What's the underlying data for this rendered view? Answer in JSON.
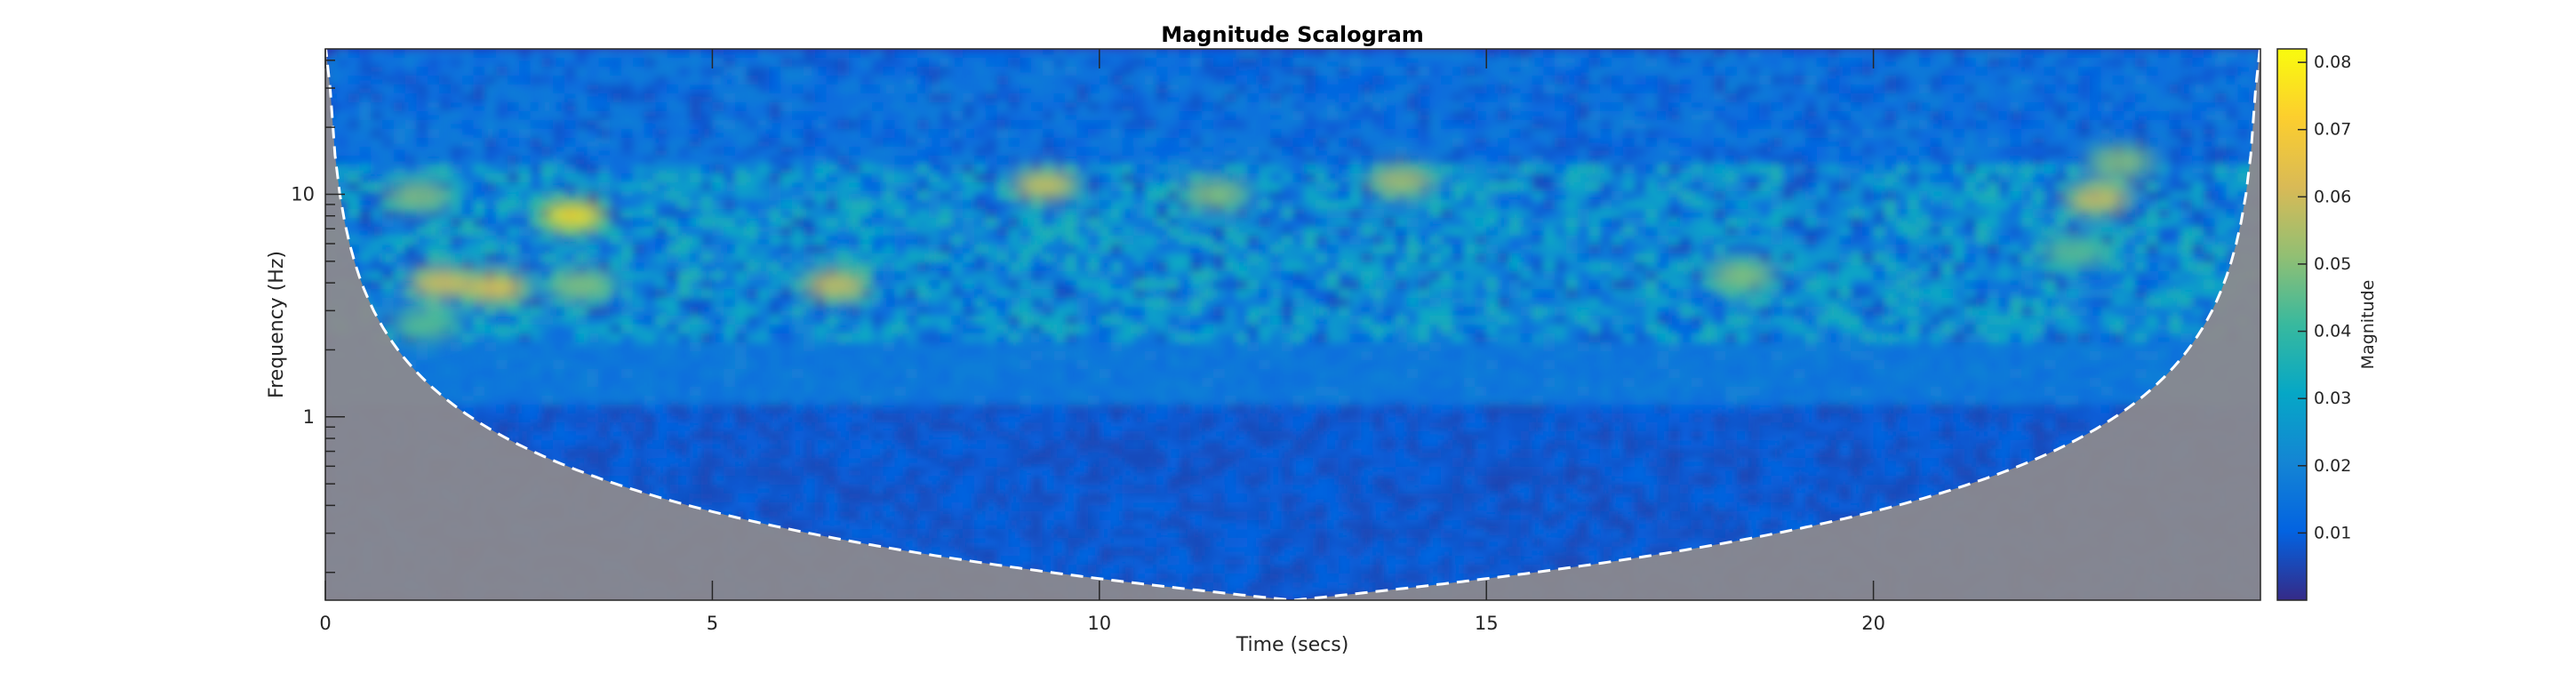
{
  "chart_data": {
    "type": "heatmap",
    "title": "Magnitude Scalogram",
    "xlabel": "Time (secs)",
    "ylabel": "Frequency (Hz)",
    "xlim": [
      0,
      25
    ],
    "x_ticks": [
      0,
      5,
      10,
      15,
      20
    ],
    "x_tick_labels": [
      "0",
      "5",
      "10",
      "15",
      "20"
    ],
    "y_scale": "log",
    "ylim": [
      0.15,
      45
    ],
    "y_ticks": [
      1,
      10
    ],
    "y_tick_labels": [
      "1",
      "10"
    ],
    "colorbar": {
      "label": "Magnitude",
      "range": [
        0,
        0.082
      ],
      "ticks": [
        0.01,
        0.02,
        0.03,
        0.04,
        0.05,
        0.06,
        0.07,
        0.08
      ],
      "tick_labels": [
        "0.01",
        "0.02",
        "0.03",
        "0.04",
        "0.05",
        "0.06",
        "0.07",
        "0.08"
      ],
      "colormap": "parula"
    },
    "cone_of_influence": {
      "style": "white dashed line",
      "outside_shading": "gray",
      "min_frequency_center_hz": 0.15,
      "center_time": 12.5
    },
    "hotspots": [
      {
        "t": 1.5,
        "f": 4.0,
        "magnitude": 0.062
      },
      {
        "t": 2.2,
        "f": 3.8,
        "magnitude": 0.065
      },
      {
        "t": 3.2,
        "f": 8.0,
        "magnitude": 0.075
      },
      {
        "t": 3.3,
        "f": 3.9,
        "magnitude": 0.05
      },
      {
        "t": 1.3,
        "f": 2.6,
        "magnitude": 0.045
      },
      {
        "t": 1.2,
        "f": 9.8,
        "magnitude": 0.05
      },
      {
        "t": 6.6,
        "f": 3.9,
        "magnitude": 0.06
      },
      {
        "t": 9.3,
        "f": 11.0,
        "magnitude": 0.06
      },
      {
        "t": 11.5,
        "f": 10.0,
        "magnitude": 0.05
      },
      {
        "t": 13.9,
        "f": 11.5,
        "magnitude": 0.055
      },
      {
        "t": 18.3,
        "f": 4.3,
        "magnitude": 0.05
      },
      {
        "t": 22.9,
        "f": 9.5,
        "magnitude": 0.06
      },
      {
        "t": 23.2,
        "f": 14.0,
        "magnitude": 0.05
      },
      {
        "t": 22.6,
        "f": 5.5,
        "magnitude": 0.045
      }
    ]
  }
}
